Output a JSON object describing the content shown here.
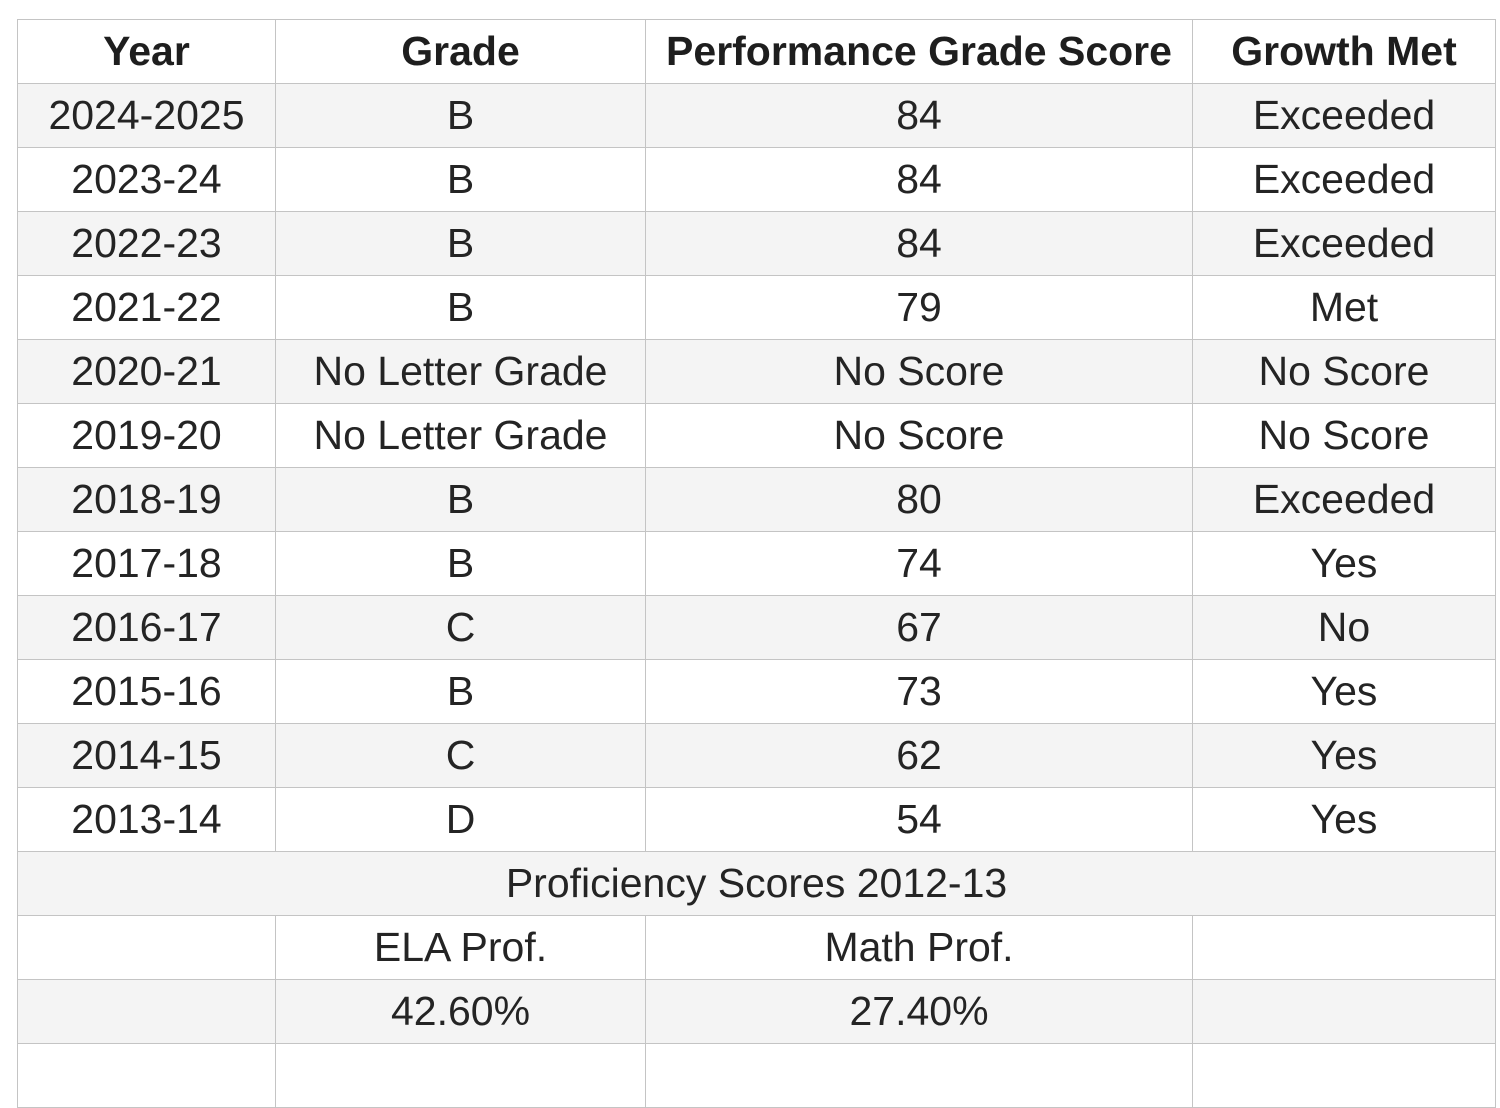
{
  "chart_data": {
    "type": "table",
    "columns": [
      "Year",
      "Grade",
      "Performance Grade Score",
      "Growth Met"
    ],
    "rows": [
      [
        "2024-2025",
        "B",
        "84",
        "Exceeded"
      ],
      [
        "2023-24",
        "B",
        "84",
        "Exceeded"
      ],
      [
        "2022-23",
        "B",
        "84",
        "Exceeded"
      ],
      [
        "2021-22",
        "B",
        "79",
        "Met"
      ],
      [
        "2020-21",
        "No Letter Grade",
        "No Score",
        "No Score"
      ],
      [
        "2019-20",
        "No Letter Grade",
        "No Score",
        "No Score"
      ],
      [
        "2018-19",
        "B",
        "80",
        "Exceeded"
      ],
      [
        "2017-18",
        "B",
        "74",
        "Yes"
      ],
      [
        "2016-17",
        "C",
        "67",
        "No"
      ],
      [
        "2015-16",
        "B",
        "73",
        "Yes"
      ],
      [
        "2014-15",
        "C",
        "62",
        "Yes"
      ],
      [
        "2013-14",
        "D",
        "54",
        "Yes"
      ]
    ],
    "section": {
      "title": "Proficiency Scores 2012-13",
      "labels": [
        "ELA Prof.",
        "Math Prof."
      ],
      "values": [
        "42.60%",
        "27.40%"
      ]
    },
    "layout_hints": {
      "alternating_rows": true,
      "first_data_row_shaded": true,
      "all_text_centered": true
    }
  },
  "colors": {
    "row_alt_bg": "#f4f4f4",
    "border": "#c4c4c4",
    "text": "#242424"
  }
}
